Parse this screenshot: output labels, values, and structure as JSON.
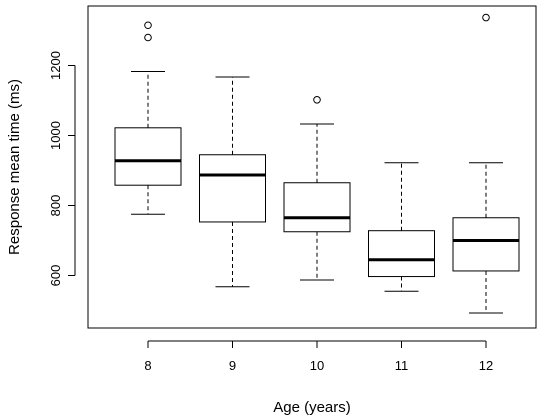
{
  "chart_data": {
    "type": "boxplot",
    "xlabel": "Age (years)",
    "ylabel": "Response mean time (ms)",
    "categories": [
      "8",
      "9",
      "10",
      "11",
      "12"
    ],
    "y_ticks": [
      600,
      800,
      1000,
      1200
    ],
    "ylim": [
      450,
      1370
    ],
    "grid": false,
    "boxes": [
      {
        "category": "8",
        "whisker_low": 775,
        "q1": 858,
        "median": 928,
        "q3": 1022,
        "whisker_high": 1183,
        "outliers": [
          1280,
          1315
        ]
      },
      {
        "category": "9",
        "whisker_low": 568,
        "q1": 753,
        "median": 887,
        "q3": 945,
        "whisker_high": 1167,
        "outliers": []
      },
      {
        "category": "10",
        "whisker_low": 587,
        "q1": 725,
        "median": 765,
        "q3": 865,
        "whisker_high": 1033,
        "outliers": [
          1102
        ]
      },
      {
        "category": "11",
        "whisker_low": 555,
        "q1": 597,
        "median": 645,
        "q3": 728,
        "whisker_high": 922,
        "outliers": []
      },
      {
        "category": "12",
        "whisker_low": 493,
        "q1": 613,
        "median": 700,
        "q3": 765,
        "whisker_high": 922,
        "outliers": [
          1337
        ]
      }
    ]
  }
}
